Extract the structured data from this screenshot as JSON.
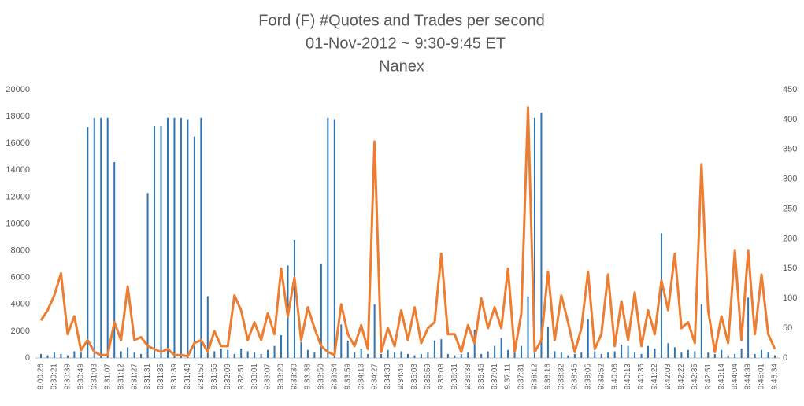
{
  "chart_data": {
    "type": "bar_line",
    "title": "Ford (F) #Quotes and Trades per second",
    "subtitle": "01-Nov-2012 ~ 9:30-9:45 ET",
    "author": "Nanex",
    "categories": [
      "9:00:26",
      null,
      "9:30:21",
      null,
      "9:30:39",
      null,
      "9:30:49",
      null,
      "9:31:03",
      null,
      "9:31:07",
      null,
      "9:31:12",
      null,
      "9:31:27",
      null,
      "9:31:31",
      null,
      "9:31:35",
      null,
      "9:31:39",
      null,
      "9:31:43",
      null,
      "9:31:50",
      null,
      "9:31:55",
      null,
      "9:32:09",
      null,
      "9:32:51",
      null,
      "9:33:01",
      null,
      "9:33:07",
      null,
      "9:33:20",
      null,
      "9:33:30",
      null,
      "9:33:38",
      null,
      "9:33:50",
      null,
      "9:33:54",
      null,
      "9:33:59",
      null,
      "9:34:13",
      null,
      "9:34:27",
      null,
      "9:34:33",
      null,
      "9:34:46",
      null,
      "9:35:03",
      null,
      "9:35:59",
      null,
      "9:36:08",
      null,
      "9:36:31",
      null,
      "9:36:38",
      null,
      "9:36:46",
      null,
      "9:37:01",
      null,
      "9:37:11",
      null,
      "9:37:31",
      null,
      "9:38:12",
      null,
      "9:38:16",
      null,
      "9:38:32",
      null,
      "9:38:46",
      null,
      "9:39:05",
      null,
      "9:39:52",
      null,
      "9:40:06",
      null,
      "9:40:13",
      null,
      "9:40:35",
      null,
      "9:41:22",
      null,
      "9:42:03",
      null,
      "9:42:22",
      null,
      "9:42:35",
      null,
      "9:42:51",
      null,
      "9:43:14",
      null,
      "9:44:04",
      null,
      "9:44:39",
      null,
      "9:45:01",
      null,
      "9:45:34"
    ],
    "series": [
      {
        "type": "bar",
        "color": "#2e75b6",
        "values": [
          300,
          200,
          400,
          300,
          200,
          500,
          400,
          17200,
          17900,
          17900,
          17900,
          14600,
          500,
          800,
          400,
          300,
          12300,
          17300,
          17300,
          17900,
          17900,
          17900,
          17800,
          16500,
          17900,
          4600,
          500,
          700,
          600,
          300,
          700,
          500,
          400,
          300,
          600,
          900,
          1700,
          6900,
          8800,
          1200,
          600,
          400,
          7000,
          17900,
          17800,
          2500,
          1300,
          400,
          700,
          300,
          4000,
          300,
          600,
          400,
          500,
          300,
          200,
          300,
          400,
          1300,
          1400,
          300,
          200,
          300,
          400,
          2100,
          300,
          500,
          900,
          1500,
          600,
          800,
          900,
          4600,
          17900,
          18300,
          2300,
          500,
          400,
          200,
          300,
          400,
          2900,
          500,
          300,
          400,
          500,
          1000,
          900,
          400,
          300,
          900,
          700,
          9300,
          1100,
          800,
          400,
          600,
          500,
          4000,
          400,
          300,
          600,
          200,
          300,
          700,
          4500,
          300,
          600,
          400,
          200
        ]
      },
      {
        "type": "line",
        "axis": "y2",
        "color": "#ed7d31",
        "values": [
          63,
          80,
          105,
          142,
          40,
          70,
          13,
          30,
          10,
          5,
          5,
          60,
          30,
          120,
          30,
          35,
          20,
          15,
          10,
          15,
          5,
          5,
          3,
          25,
          30,
          10,
          45,
          20,
          20,
          105,
          80,
          30,
          60,
          30,
          75,
          40,
          150,
          70,
          135,
          30,
          85,
          50,
          20,
          10,
          5,
          90,
          40,
          20,
          55,
          15,
          363,
          10,
          50,
          20,
          80,
          30,
          85,
          25,
          50,
          60,
          175,
          40,
          40,
          10,
          55,
          25,
          100,
          50,
          85,
          50,
          150,
          10,
          75,
          420,
          10,
          30,
          145,
          30,
          105,
          60,
          10,
          50,
          145,
          15,
          40,
          140,
          20,
          95,
          30,
          110,
          20,
          80,
          40,
          130,
          80,
          175,
          50,
          60,
          25,
          325,
          80,
          10,
          70,
          25,
          180,
          30,
          180,
          40,
          140,
          40,
          15
        ]
      }
    ],
    "ylim": [
      0,
      20000
    ],
    "yticks": [
      0,
      2000,
      4000,
      6000,
      8000,
      10000,
      12000,
      14000,
      16000,
      18000,
      20000
    ],
    "y2lim": [
      0,
      450
    ],
    "y2ticks": [
      0,
      50,
      100,
      150,
      200,
      250,
      300,
      350,
      400,
      450
    ]
  }
}
